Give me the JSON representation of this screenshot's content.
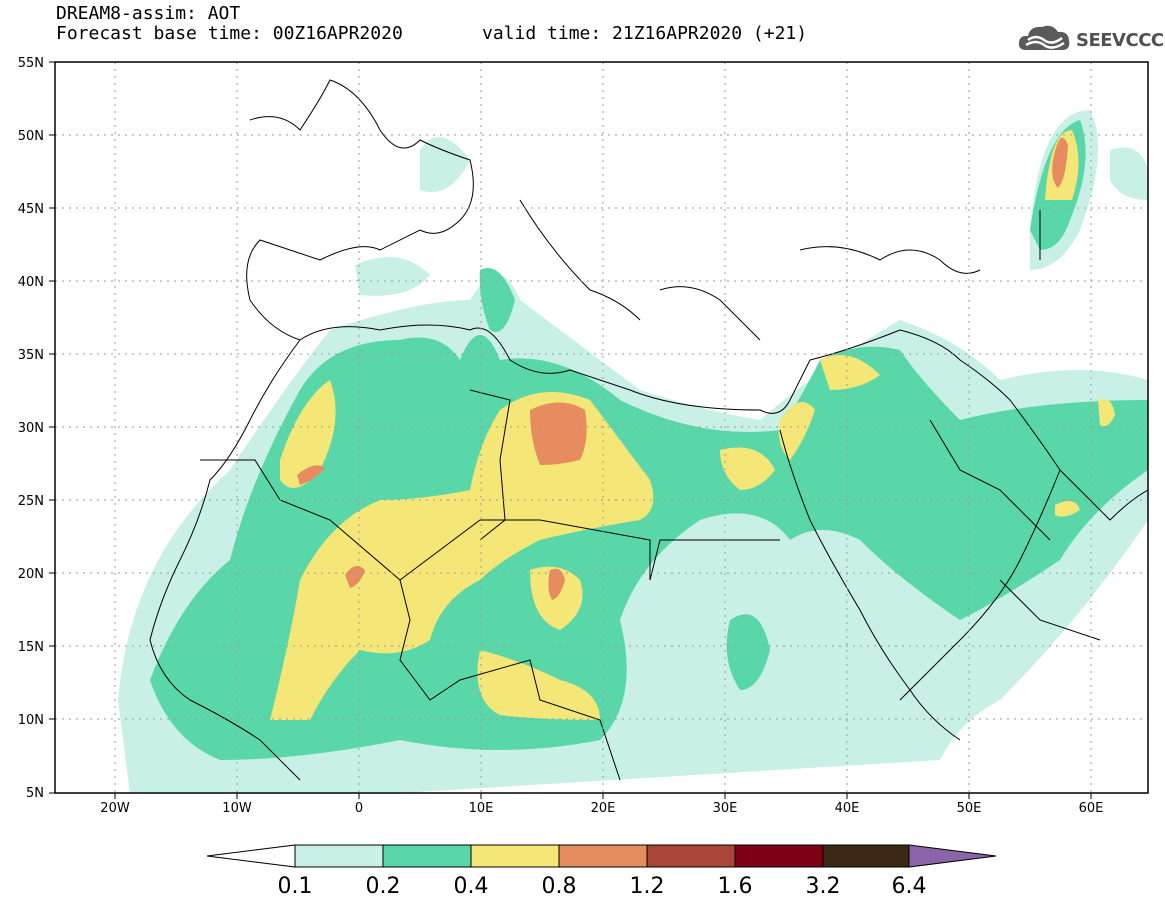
{
  "header": {
    "title_line1": "DREAM8-assim: AOT",
    "title_line2": "Forecast base time: 00Z16APR2020",
    "valid_time": "valid time: 21Z16APR2020 (+21)",
    "logo_text": "SEEVCCC",
    "logo_icon": "cloud-icon"
  },
  "map": {
    "lat_labels": [
      "55N",
      "50N",
      "45N",
      "40N",
      "35N",
      "30N",
      "25N",
      "20N",
      "15N",
      "10N",
      "5N"
    ],
    "lon_labels": [
      "20W",
      "10W",
      "0",
      "10E",
      "20E",
      "30E",
      "40E",
      "50E",
      "60E"
    ]
  },
  "colorbar": {
    "labels": [
      "0.1",
      "0.2",
      "0.4",
      "0.8",
      "1.2",
      "1.6",
      "3.2",
      "6.4"
    ],
    "colors": [
      "#c8f0e6",
      "#5ad7a8",
      "#f5e678",
      "#e68c5f",
      "#aa4637",
      "#7d0014",
      "#3c2814",
      "#8c64aa"
    ]
  }
}
